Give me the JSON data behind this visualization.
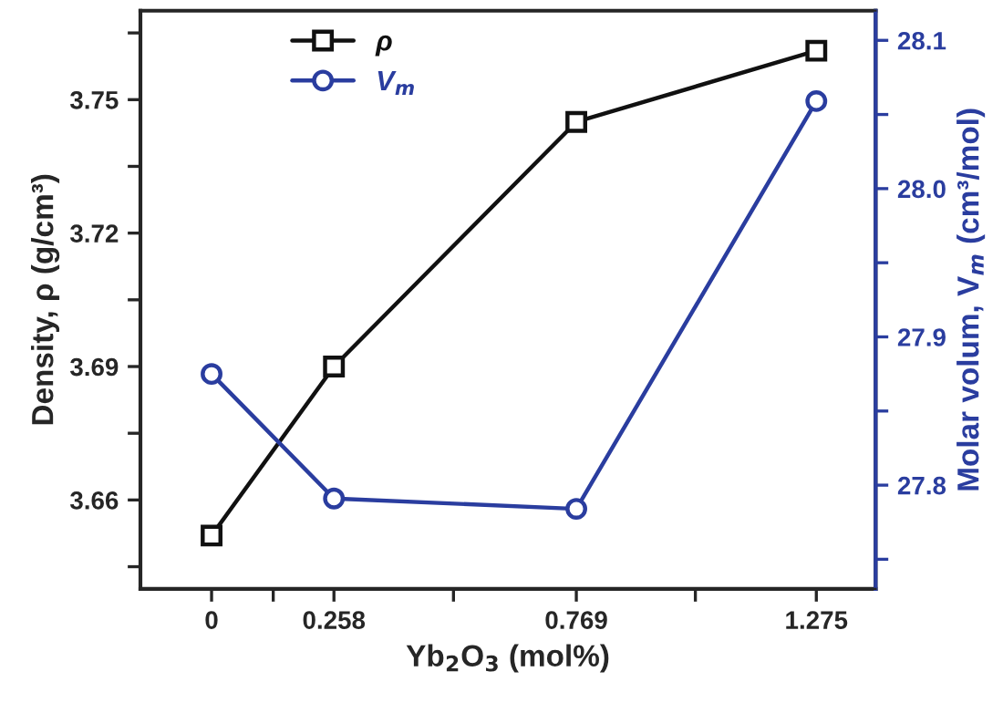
{
  "chart_data": {
    "type": "line",
    "xlabel": "Yb$_{2}$O$_{3}$ (mol%)",
    "ylabel": "Density, ρ (g/cm³)",
    "y2label": "Molar volum, V$_{m}$ (cm³/mol)",
    "x": [
      0,
      0.258,
      0.769,
      1.275
    ],
    "series": [
      {
        "name": "ρ",
        "color": "#111111",
        "marker": "square",
        "values": [
          3.652,
          3.69,
          3.745,
          3.761
        ]
      },
      {
        "name": "V$_{m}$",
        "color": "#2a3d9f",
        "marker": "circle",
        "axis": "y2",
        "values": [
          27.875,
          27.791,
          27.784,
          28.059
        ]
      }
    ],
    "xlim": [
      -0.15,
      1.4
    ],
    "xticks": [
      0,
      {
        "value": 0.13,
        "label": null
      },
      0.258,
      {
        "value": 0.51,
        "label": null
      },
      0.769,
      {
        "value": 1.02,
        "label": null
      },
      1.275
    ],
    "ylim": [
      3.64,
      3.77
    ],
    "yticks": [
      {
        "value": 3.645,
        "label": null
      },
      3.66,
      {
        "value": 3.675,
        "label": null
      },
      3.69,
      {
        "value": 3.705,
        "label": null
      },
      3.72,
      {
        "value": 3.735,
        "label": null
      },
      3.75,
      {
        "value": 3.765,
        "label": null
      }
    ],
    "y2lim": [
      27.73,
      28.12
    ],
    "y2ticks": [
      {
        "value": 27.75,
        "label": null
      },
      27.8,
      {
        "value": 27.85,
        "label": null
      },
      27.9,
      {
        "value": 27.95,
        "label": null
      },
      {
        "value": 28.0,
        "label": "28.0"
      },
      {
        "value": 28.05,
        "label": null
      },
      28.1
    ],
    "legend": "top left",
    "grid": false,
    "line_style": "solid"
  }
}
